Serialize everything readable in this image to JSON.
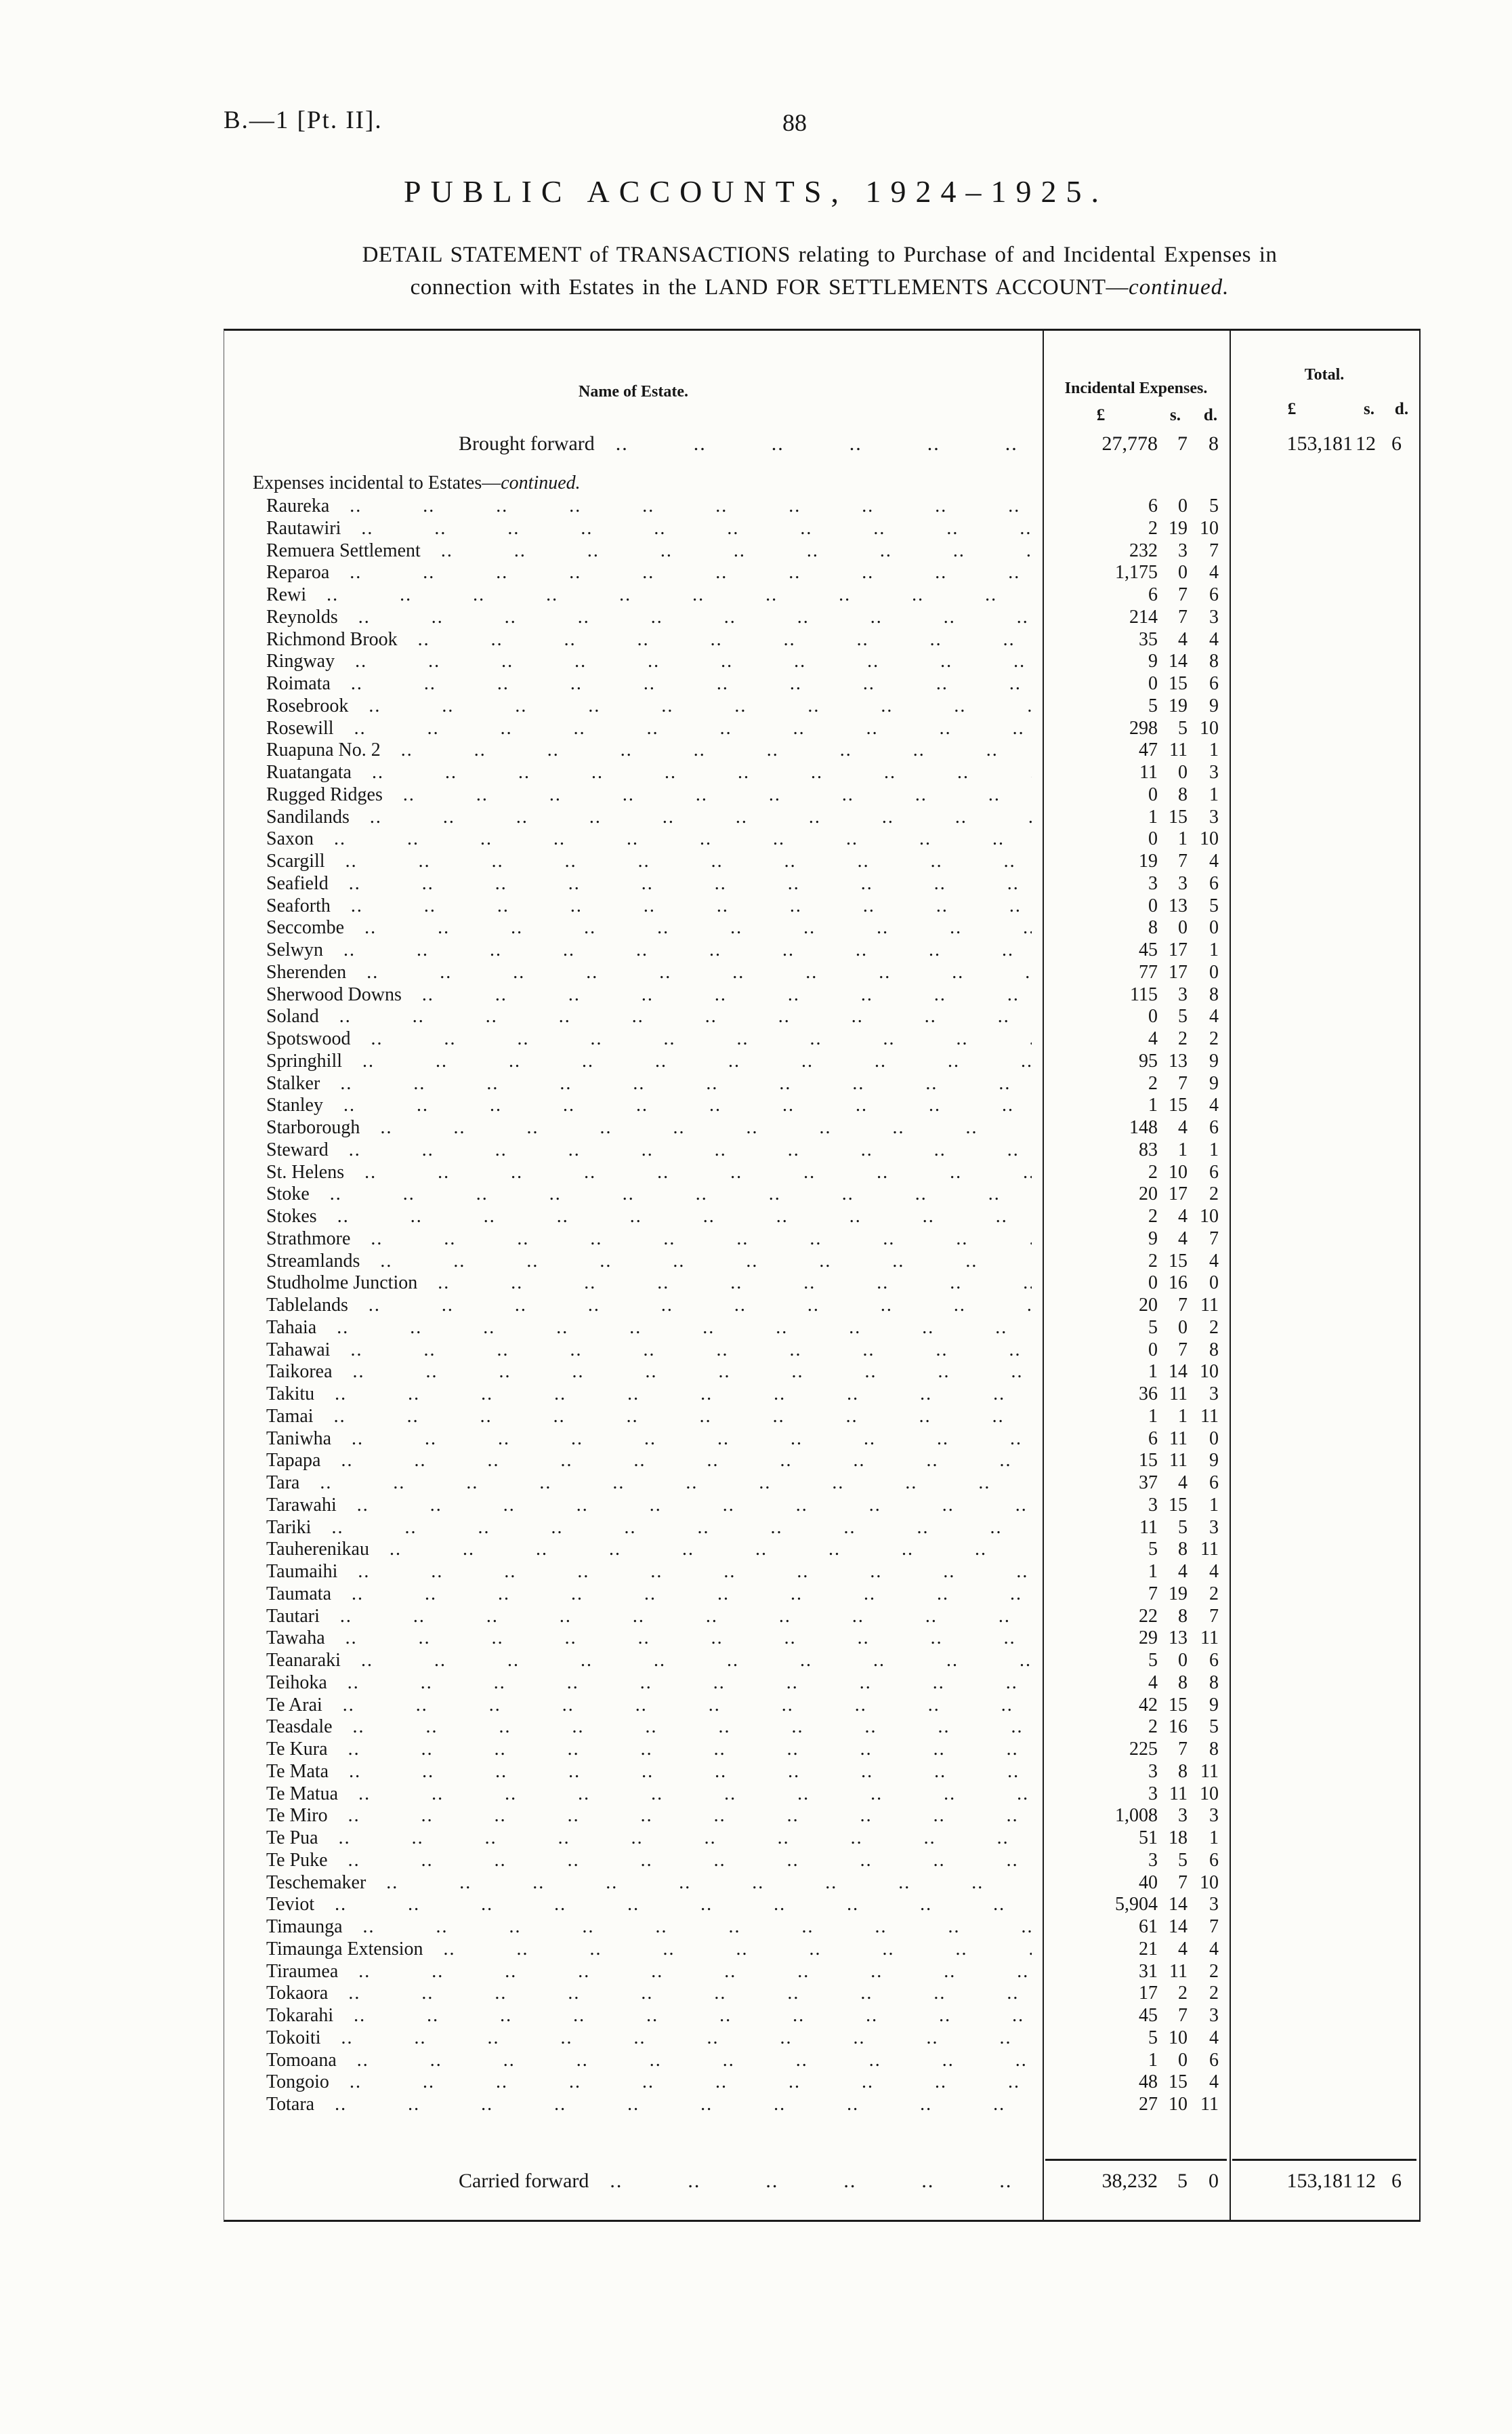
{
  "page": {
    "doc_ref": "B.—1 [Pt. II].",
    "page_number": "88",
    "title": "PUBLIC ACCOUNTS, 1924–1925.",
    "subtitle_line1": "DETAIL STATEMENT of TRANSACTIONS relating to Purchase of and Incidental Expenses in",
    "subtitle_line2": "connection with Estates in the LAND FOR SETTLEMENTS ACCOUNT—",
    "subtitle_continued": "continued."
  },
  "table": {
    "headers": {
      "name": "Name of Estate.",
      "incidental": "Incidental Expenses.",
      "total": "Total.",
      "pound": "£",
      "s": "s.",
      "d": "d."
    },
    "brought_forward": {
      "label": "Brought forward",
      "inc_pounds": "27,778",
      "inc_s": "7",
      "inc_d": "8",
      "tot_pounds": "153,181",
      "tot_s": "12",
      "tot_d": "6"
    },
    "section_heading": "Expenses incidental to Estates—",
    "section_heading_continued": "continued.",
    "rows": [
      [
        "Raureka",
        "6",
        "0",
        "5"
      ],
      [
        "Rautawiri",
        "2",
        "19",
        "10"
      ],
      [
        "Remuera Settlement",
        "232",
        "3",
        "7"
      ],
      [
        "Reparoa",
        "1,175",
        "0",
        "4"
      ],
      [
        "Rewi",
        "6",
        "7",
        "6"
      ],
      [
        "Reynolds",
        "214",
        "7",
        "3"
      ],
      [
        "Richmond Brook",
        "35",
        "4",
        "4"
      ],
      [
        "Ringway",
        "9",
        "14",
        "8"
      ],
      [
        "Roimata",
        "0",
        "15",
        "6"
      ],
      [
        "Rosebrook",
        "5",
        "19",
        "9"
      ],
      [
        "Rosewill",
        "298",
        "5",
        "10"
      ],
      [
        "Ruapuna No. 2",
        "47",
        "11",
        "1"
      ],
      [
        "Ruatangata",
        "11",
        "0",
        "3"
      ],
      [
        "Rugged Ridges",
        "0",
        "8",
        "1"
      ],
      [
        "Sandilands",
        "1",
        "15",
        "3"
      ],
      [
        "Saxon",
        "0",
        "1",
        "10"
      ],
      [
        "Scargill",
        "19",
        "7",
        "4"
      ],
      [
        "Seafield",
        "3",
        "3",
        "6"
      ],
      [
        "Seaforth",
        "0",
        "13",
        "5"
      ],
      [
        "Seccombe",
        "8",
        "0",
        "0"
      ],
      [
        "Selwyn",
        "45",
        "17",
        "1"
      ],
      [
        "Sherenden",
        "77",
        "17",
        "0"
      ],
      [
        "Sherwood Downs",
        "115",
        "3",
        "8"
      ],
      [
        "Soland",
        "0",
        "5",
        "4"
      ],
      [
        "Spotswood",
        "4",
        "2",
        "2"
      ],
      [
        "Springhill",
        "95",
        "13",
        "9"
      ],
      [
        "Stalker",
        "2",
        "7",
        "9"
      ],
      [
        "Stanley",
        "1",
        "15",
        "4"
      ],
      [
        "Starborough",
        "148",
        "4",
        "6"
      ],
      [
        "Steward",
        "83",
        "1",
        "1"
      ],
      [
        "St. Helens",
        "2",
        "10",
        "6"
      ],
      [
        "Stoke",
        "20",
        "17",
        "2"
      ],
      [
        "Stokes",
        "2",
        "4",
        "10"
      ],
      [
        "Strathmore",
        "9",
        "4",
        "7"
      ],
      [
        "Streamlands",
        "2",
        "15",
        "4"
      ],
      [
        "Studholme Junction",
        "0",
        "16",
        "0"
      ],
      [
        "Tablelands",
        "20",
        "7",
        "11"
      ],
      [
        "Tahaia",
        "5",
        "0",
        "2"
      ],
      [
        "Tahawai",
        "0",
        "7",
        "8"
      ],
      [
        "Taikorea",
        "1",
        "14",
        "10"
      ],
      [
        "Takitu",
        "36",
        "11",
        "3"
      ],
      [
        "Tamai",
        "1",
        "1",
        "11"
      ],
      [
        "Taniwha",
        "6",
        "11",
        "0"
      ],
      [
        "Tapapa",
        "15",
        "11",
        "9"
      ],
      [
        "Tara",
        "37",
        "4",
        "6"
      ],
      [
        "Tarawahi",
        "3",
        "15",
        "1"
      ],
      [
        "Tariki",
        "11",
        "5",
        "3"
      ],
      [
        "Tauherenikau",
        "5",
        "8",
        "11"
      ],
      [
        "Taumaihi",
        "1",
        "4",
        "4"
      ],
      [
        "Taumata",
        "7",
        "19",
        "2"
      ],
      [
        "Tautari",
        "22",
        "8",
        "7"
      ],
      [
        "Tawaha",
        "29",
        "13",
        "11"
      ],
      [
        "Teanaraki",
        "5",
        "0",
        "6"
      ],
      [
        "Teihoka",
        "4",
        "8",
        "8"
      ],
      [
        "Te Arai",
        "42",
        "15",
        "9"
      ],
      [
        "Teasdale",
        "2",
        "16",
        "5"
      ],
      [
        "Te Kura",
        "225",
        "7",
        "8"
      ],
      [
        "Te Mata",
        "3",
        "8",
        "11"
      ],
      [
        "Te Matua",
        "3",
        "11",
        "10"
      ],
      [
        "Te Miro",
        "1,008",
        "3",
        "3"
      ],
      [
        "Te Pua",
        "51",
        "18",
        "1"
      ],
      [
        "Te Puke",
        "3",
        "5",
        "6"
      ],
      [
        "Teschemaker",
        "40",
        "7",
        "10"
      ],
      [
        "Teviot",
        "5,904",
        "14",
        "3"
      ],
      [
        "Timaunga",
        "61",
        "14",
        "7"
      ],
      [
        "Timaunga Extension",
        "21",
        "4",
        "4"
      ],
      [
        "Tiraumea",
        "31",
        "11",
        "2"
      ],
      [
        "Tokaora",
        "17",
        "2",
        "2"
      ],
      [
        "Tokarahi",
        "45",
        "7",
        "3"
      ],
      [
        "Tokoiti",
        "5",
        "10",
        "4"
      ],
      [
        "Tomoana",
        "1",
        "0",
        "6"
      ],
      [
        "Tongoio",
        "48",
        "15",
        "4"
      ],
      [
        "Totara",
        "27",
        "10",
        "11"
      ]
    ],
    "carried_forward": {
      "label": "Carried forward",
      "inc_pounds": "38,232",
      "inc_s": "5",
      "inc_d": "0",
      "tot_pounds": "153,181",
      "tot_s": "12",
      "tot_d": "6"
    }
  }
}
